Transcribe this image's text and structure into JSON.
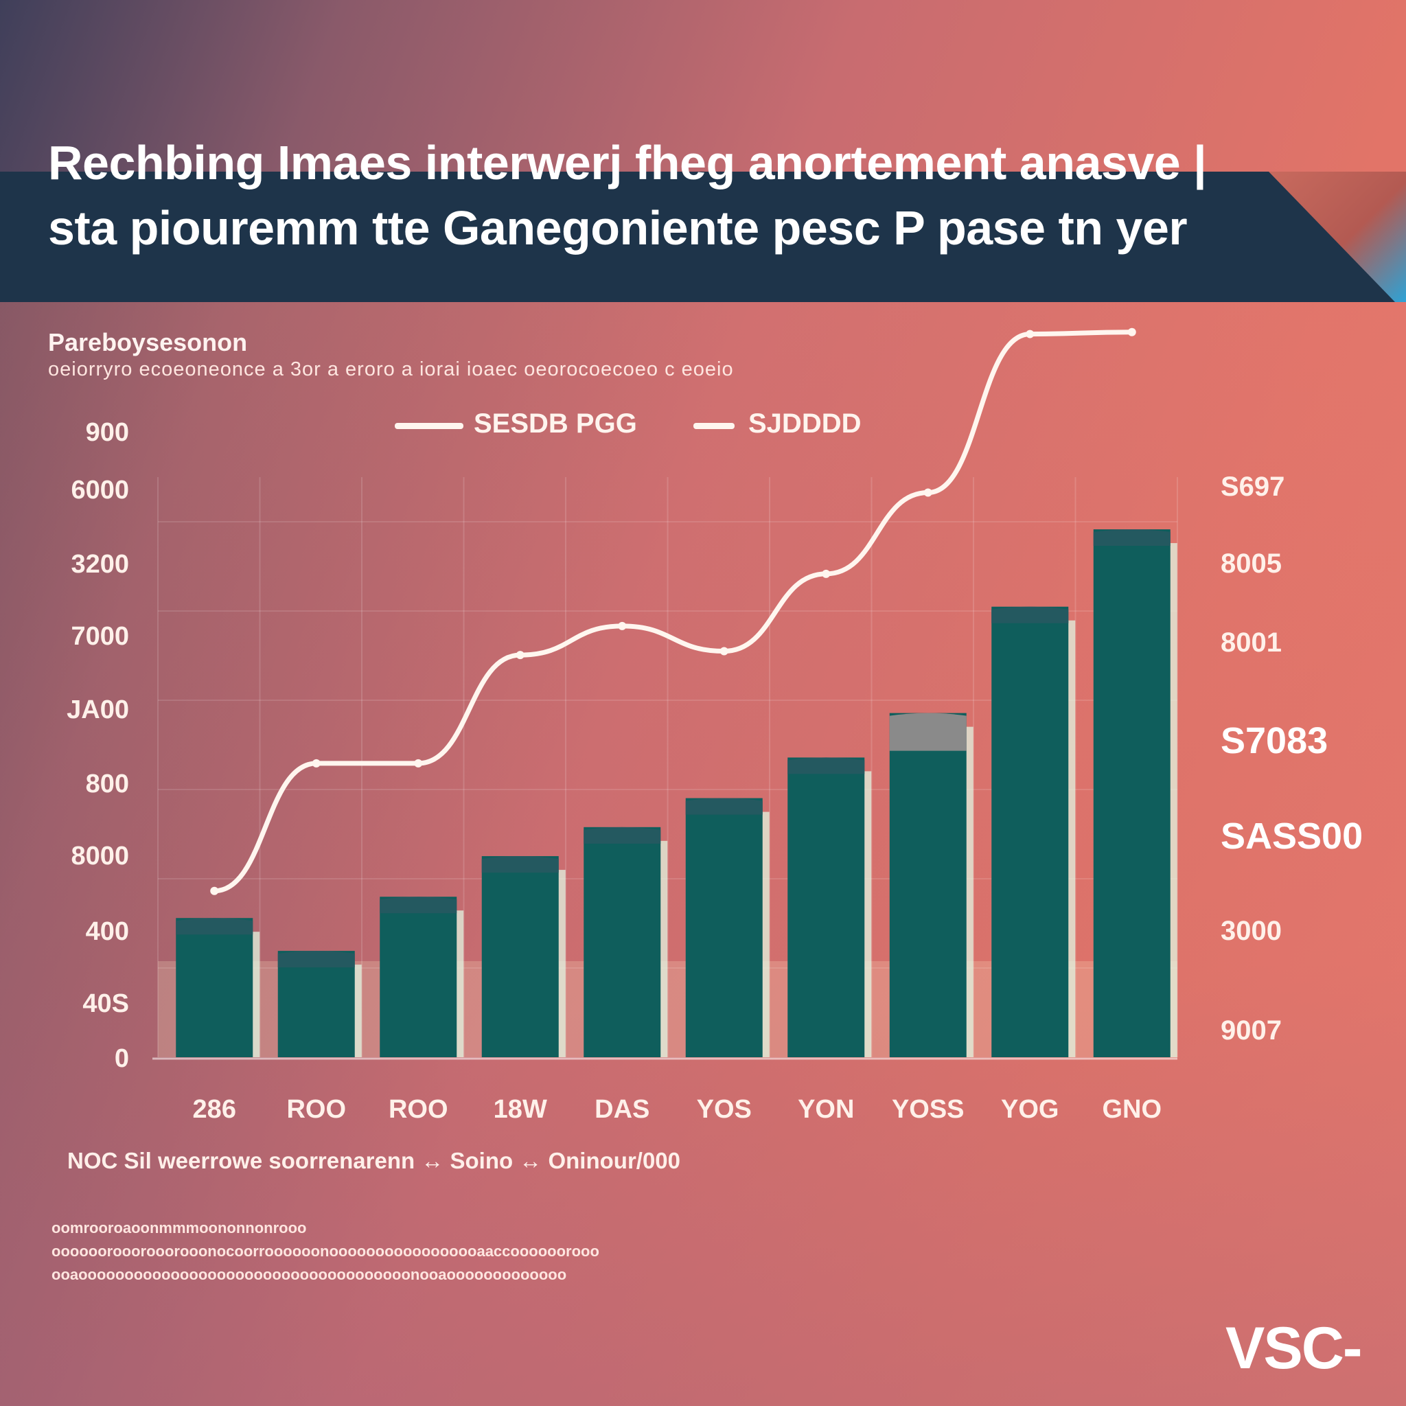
{
  "title_lines": [
    "Rechbing Imaes interwerj fheg anortement anasve |",
    "sta piouremm tte Ganegoniente pesc P pase tn yer"
  ],
  "subheading": "Pareboysesonon",
  "description": "oeiorryro ecoeoneonce a 3or a eroro a iorai ioaec oeorocoecoeo c eoeio",
  "legend": [
    {
      "label": "SESDB PGG"
    },
    {
      "label": "SJDDDD"
    }
  ],
  "chart_data": {
    "type": "bar",
    "categories": [
      "286",
      "ROO",
      "ROO",
      "18W",
      "DAS",
      "YOS",
      "YON",
      "YOSS",
      "YOG",
      "GNO"
    ],
    "series": [
      {
        "name": "SESDB PGG",
        "type": "bar",
        "values": [
          360,
          275,
          415,
          520,
          595,
          670,
          775,
          890,
          1165,
          1365
        ]
      },
      {
        "name": "SJDDDD",
        "type": "line",
        "values": [
          430,
          760,
          760,
          1040,
          1115,
          1050,
          1250,
          1460,
          1870,
          1875
        ]
      }
    ],
    "y_left_ticks": [
      "0",
      "40S",
      "400",
      "8000",
      "800",
      "JA00",
      "7000",
      "3200",
      "6000",
      "900"
    ],
    "y_right_ticks": [
      "9007",
      "3000",
      "SASS00",
      "S7083",
      "8001",
      "8005",
      "S697"
    ],
    "ylim": [
      0,
      1500
    ],
    "grid": true,
    "colors": {
      "bar": "#0f5e5c",
      "bar_top": "#245960",
      "bar_top_grey": "#8a8a8a",
      "line": "#fff6ef",
      "tick_text": "#fff1ea"
    }
  },
  "note": "NOC Sil weerrowe soorrenarenn ↔ Soino ↔ Oninour/000",
  "fineprint": [
    "oomrooroaoonmmmoononnonrooo",
    "oooooorooorooorooonocoorroooooonooooooooooooooooaaccoooooorooo",
    "ooaoooooooooooooooooooooooooooooooooooonooaooooooooooooo"
  ],
  "logo": "VSC-"
}
